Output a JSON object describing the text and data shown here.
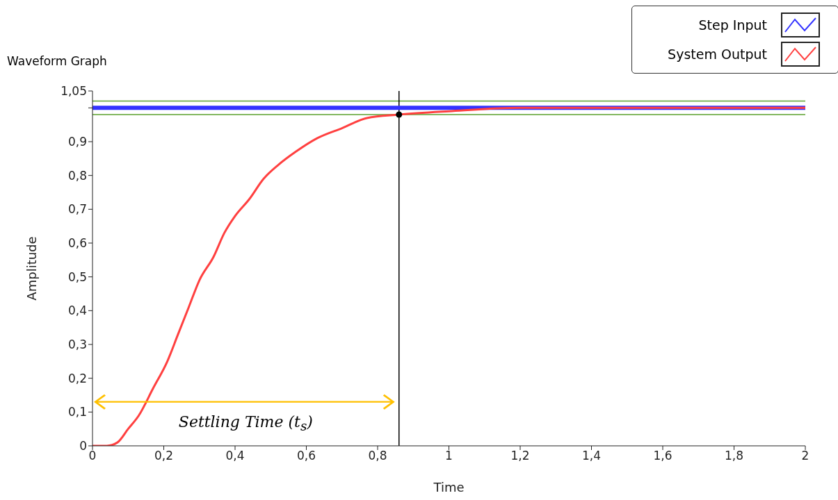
{
  "chart_data": {
    "type": "line",
    "title": "Waveform Graph",
    "xlabel": "Time",
    "ylabel": "Amplitude",
    "xlim": [
      0,
      2
    ],
    "ylim": [
      0,
      1.05
    ],
    "xticks": [
      0,
      {
        "value": 0.2,
        "label": "0,2"
      },
      {
        "value": 0.4,
        "label": "0,4"
      },
      {
        "value": 0.6,
        "label": "0,6"
      },
      {
        "value": 0.8,
        "label": "0,8"
      },
      1,
      {
        "value": 1.2,
        "label": "1,2"
      },
      {
        "value": 1.4,
        "label": "1,4"
      },
      {
        "value": 1.6,
        "label": "1,6"
      },
      {
        "value": 1.8,
        "label": "1,8"
      },
      2
    ],
    "yticks": [
      0,
      {
        "value": 0.1,
        "label": "0,1"
      },
      {
        "value": 0.2,
        "label": "0,2"
      },
      {
        "value": 0.3,
        "label": "0,3"
      },
      {
        "value": 0.4,
        "label": "0,4"
      },
      {
        "value": 0.5,
        "label": "0,5"
      },
      {
        "value": 0.6,
        "label": "0,6"
      },
      {
        "value": 0.7,
        "label": "0,7"
      },
      {
        "value": 0.8,
        "label": "0,8"
      },
      {
        "value": 0.9,
        "label": "0,9"
      },
      {
        "value": 1,
        "label": null
      },
      {
        "value": 1.05,
        "label": "1,05"
      }
    ],
    "series": [
      {
        "name": "Step Input",
        "color": "#3333ff",
        "x": [
          0,
          2
        ],
        "values": [
          1,
          1
        ]
      },
      {
        "name": "System Output",
        "color": "#ff4040",
        "x": [
          0,
          0.04,
          0.07,
          0.1,
          0.13,
          0.17,
          0.21,
          0.24,
          0.27,
          0.3,
          0.34,
          0.37,
          0.4,
          0.44,
          0.48,
          0.52,
          0.57,
          0.63,
          0.7,
          0.77,
          0.86,
          1,
          1.2,
          2
        ],
        "values": [
          0,
          0,
          0.01,
          0.05,
          0.09,
          0.17,
          0.25,
          0.33,
          0.41,
          0.49,
          0.56,
          0.63,
          0.68,
          0.73,
          0.79,
          0.83,
          0.87,
          0.91,
          0.94,
          0.97,
          0.98,
          0.99,
          1,
          1
        ]
      },
      {
        "type": "scatter",
        "color": "#000000",
        "x": [
          0.86
        ],
        "values": [
          0.98
        ]
      }
    ],
    "ref_lines": [
      {
        "axis": "y",
        "value": 1.02,
        "color": "#5aa02c"
      },
      {
        "axis": "y",
        "value": 0.98,
        "color": "#5aa02c"
      },
      {
        "axis": "x",
        "value": 0.86,
        "color": "#000000"
      }
    ],
    "annotations": [
      "Settling Time (t$_{s}$)"
    ],
    "legend": "top right",
    "line_style": "solid"
  }
}
